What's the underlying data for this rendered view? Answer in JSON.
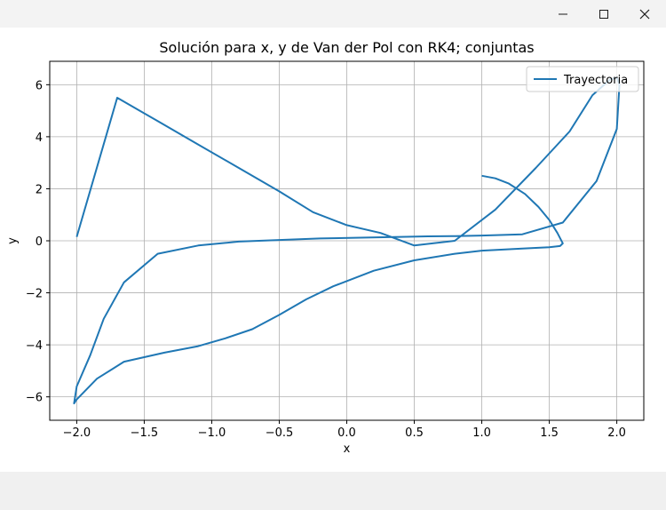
{
  "window": {
    "minimize_icon": "minimize-icon",
    "maximize_icon": "maximize-icon",
    "close_icon": "close-icon"
  },
  "chart_data": {
    "type": "line",
    "title": "Solución para x, y de Van der Pol con RK4; conjuntas",
    "xlabel": "x",
    "ylabel": "y",
    "xlim": [
      -2.2,
      2.2
    ],
    "ylim": [
      -6.9,
      6.9
    ],
    "xticks": [
      -2.0,
      -1.5,
      -1.0,
      -0.5,
      0.0,
      0.5,
      1.0,
      1.5,
      2.0
    ],
    "xtick_labels": [
      "−2.0",
      "−1.5",
      "−1.0",
      "−0.5",
      "0.0",
      "0.5",
      "1.0",
      "1.5",
      "2.0"
    ],
    "yticks": [
      -6,
      -4,
      -2,
      0,
      2,
      4,
      6
    ],
    "ytick_labels": [
      "−6",
      "−4",
      "−2",
      "0",
      "2",
      "4",
      "6"
    ],
    "grid": true,
    "legend_position": "upper right",
    "color": "#1f77b4",
    "series": [
      {
        "name": "Trayectoria",
        "x": [
          1.0,
          1.1,
          1.2,
          1.32,
          1.42,
          1.5,
          1.56,
          1.6,
          1.58,
          1.5,
          1.3,
          1.0,
          0.8,
          0.5,
          0.2,
          -0.1,
          -0.3,
          -0.5,
          -0.7,
          -0.9,
          -1.1,
          -1.35,
          -1.65,
          -1.85,
          -2.0,
          -2.02,
          -2.0,
          -1.9,
          -1.8,
          -1.65,
          -1.4,
          -1.1,
          -0.8,
          -0.5,
          -0.2,
          0.1,
          0.4,
          0.6,
          0.8,
          1.0,
          1.3,
          1.6,
          1.85,
          2.0,
          2.02,
          2.0,
          1.95,
          1.82,
          1.65,
          1.4,
          1.1,
          0.8,
          0.5,
          0.25,
          0.0,
          -0.25,
          -0.5,
          -0.8,
          -1.1,
          -1.4,
          -1.7,
          -2.0
        ],
        "y": [
          2.5,
          2.4,
          2.2,
          1.8,
          1.3,
          0.8,
          0.3,
          -0.1,
          -0.2,
          -0.25,
          -0.3,
          -0.38,
          -0.5,
          -0.75,
          -1.15,
          -1.75,
          -2.25,
          -2.85,
          -3.4,
          -3.75,
          -4.05,
          -4.3,
          -4.65,
          -5.3,
          -6.1,
          -6.25,
          -5.6,
          -4.4,
          -3.0,
          -1.6,
          -0.5,
          -0.18,
          -0.03,
          0.03,
          0.09,
          0.12,
          0.15,
          0.17,
          0.18,
          0.2,
          0.25,
          0.7,
          2.3,
          4.3,
          6.0,
          6.28,
          6.2,
          5.6,
          4.2,
          2.8,
          1.2,
          0.0,
          -0.18,
          0.3,
          0.6,
          1.1,
          1.9,
          2.8,
          3.7,
          4.6,
          5.5,
          0.15
        ]
      }
    ]
  }
}
